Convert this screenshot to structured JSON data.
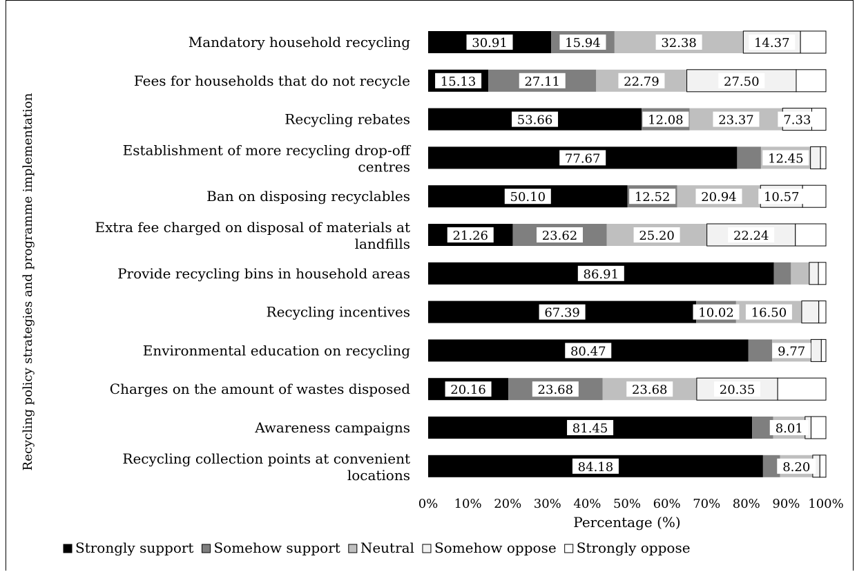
{
  "chart_data": {
    "type": "bar",
    "stacked": true,
    "orientation": "horizontal",
    "percent_scale": true,
    "title": "",
    "xlabel": "Percentage (%)",
    "ylabel": "Recycling policy strategies and programme implementation",
    "xlim": [
      0,
      100
    ],
    "x_ticks": [
      "0%",
      "10%",
      "20%",
      "30%",
      "40%",
      "50%",
      "60%",
      "70%",
      "80%",
      "90%",
      "100%"
    ],
    "grid": false,
    "legend_position": "bottom",
    "categories": [
      "Mandatory household recycling",
      "Fees for households that do not recycle",
      "Recycling rebates",
      "Establishment of more recycling drop-off centres",
      "Ban on disposing recyclables",
      "Extra fee charged on disposal of materials at landfills",
      "Provide recycling bins in household areas",
      "Recycling incentives",
      "Environmental education on recycling",
      "Charges on the amount of wastes disposed",
      "Awareness campaigns",
      "Recycling collection points at convenient locations"
    ],
    "category_lines": [
      [
        "Mandatory household recycling"
      ],
      [
        "Fees for households that do not recycle"
      ],
      [
        "Recycling rebates"
      ],
      [
        "Establishment of more recycling drop-off",
        "centres"
      ],
      [
        "Ban on disposing recyclables"
      ],
      [
        "Extra fee charged on disposal of materials at",
        "landfills"
      ],
      [
        "Provide recycling bins in household areas"
      ],
      [
        "Recycling incentives"
      ],
      [
        "Environmental education on recycling"
      ],
      [
        "Charges on the amount of wastes disposed"
      ],
      [
        "Awareness campaigns"
      ],
      [
        "Recycling collection points at convenient",
        "locations"
      ]
    ],
    "series": [
      {
        "name": "Strongly support",
        "color": "#000000",
        "values": [
          30.91,
          15.13,
          53.66,
          77.67,
          50.1,
          21.26,
          86.91,
          67.39,
          80.47,
          20.16,
          81.45,
          84.18
        ],
        "labels": [
          "30.91",
          "15.13",
          "53.66",
          "77.67",
          "50.10",
          "21.26",
          "86.91",
          "67.39",
          "80.47",
          "20.16",
          "81.45",
          "84.18"
        ]
      },
      {
        "name": "Somehow support",
        "color": "#7f7f7f",
        "values": [
          15.94,
          27.11,
          12.08,
          6.0,
          12.52,
          23.62,
          4.3,
          10.02,
          6.0,
          23.68,
          5.3,
          4.3
        ],
        "labels": [
          "15.94",
          "27.11",
          "12.08",
          "",
          "12.52",
          "23.62",
          "",
          "10.02",
          "",
          "23.68",
          "",
          ""
        ]
      },
      {
        "name": "Neutral",
        "color": "#bfbfbf",
        "values": [
          32.38,
          22.79,
          23.37,
          12.45,
          20.94,
          25.2,
          4.6,
          16.5,
          9.77,
          23.68,
          8.01,
          8.2
        ],
        "labels": [
          "32.38",
          "22.79",
          "23.37",
          "12.45",
          "20.94",
          "25.20",
          "",
          "16.50",
          "9.77",
          "23.68",
          "8.01",
          "8.20"
        ]
      },
      {
        "name": "Somehow oppose",
        "color": "#f2f2f2",
        "values": [
          14.37,
          27.5,
          7.33,
          2.5,
          10.57,
          22.24,
          2.3,
          4.3,
          2.6,
          20.35,
          1.5,
          1.8
        ],
        "labels": [
          "14.37",
          "27.50",
          "7.33",
          "",
          "10.57",
          "22.24",
          "",
          "",
          "",
          "20.35",
          "",
          ""
        ]
      },
      {
        "name": "Strongly oppose",
        "color": "#ffffff",
        "values": [
          6.4,
          7.47,
          3.56,
          1.38,
          5.87,
          7.68,
          1.89,
          1.79,
          1.16,
          12.13,
          3.74,
          1.52
        ],
        "labels": [
          "",
          "",
          "",
          "",
          "",
          "",
          "",
          "",
          "",
          "",
          "",
          ""
        ]
      }
    ]
  }
}
